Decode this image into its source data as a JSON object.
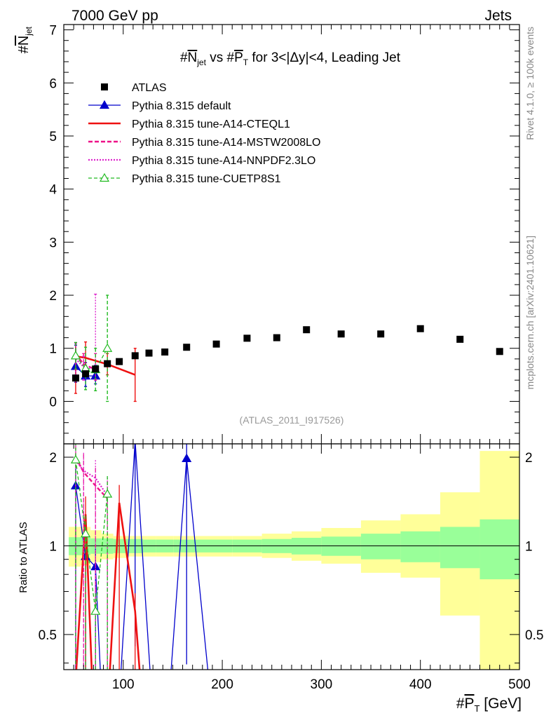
{
  "header": {
    "left": "7000 GeV pp",
    "right": "Jets"
  },
  "side_labels": {
    "rivet": "Rivet 4.1.0, ≥ 100k events",
    "mcplots": "mcplots.cern.ch [arXiv:2401.10621]"
  },
  "chart_data": {
    "type": "scatter",
    "title": {
      "pre": "#",
      "sym": "N",
      "sub": "jet",
      "mid": " vs #",
      "sym2": "P",
      "sub2": "T",
      "post": " for 3<|Δy|<4, Leading Jet"
    },
    "ylabel": {
      "pre": "#",
      "sym": "N",
      "sub": "jet"
    },
    "xlabel": {
      "pre": "#",
      "sym": "P",
      "sub": "T",
      "post": " [GeV]"
    },
    "ratio_ylabel": "Ratio to ATLAS",
    "watermark": "(ATLAS_2011_I917526)",
    "xlim": [
      40,
      500
    ],
    "ylim": [
      -0.8,
      7.1
    ],
    "ratio_ylim": [
      0.38,
      2.22
    ],
    "xticks": [
      "100",
      "200",
      "300",
      "400",
      "500"
    ],
    "xtick_values": [
      100,
      200,
      300,
      400,
      500
    ],
    "yticks": [
      "0",
      "1",
      "2",
      "3",
      "4",
      "5",
      "6",
      "7"
    ],
    "ytick_values": [
      0,
      1,
      2,
      3,
      4,
      5,
      6,
      7
    ],
    "ratio_yticks": [
      "0.5",
      "1",
      "2"
    ],
    "ratio_ytick_values": [
      0.5,
      1,
      2
    ],
    "legend": [
      "ATLAS",
      "Pythia 8.315 default",
      "Pythia 8.315 tune-A14-CTEQL1",
      "Pythia 8.315 tune-A14-MSTW2008LO",
      "Pythia 8.315 tune-A14-NNPDF2.3LO",
      "Pythia 8.315 tune-CUETP8S1"
    ],
    "series_colors": [
      "#000000",
      "#0000cc",
      "#ee1111",
      "#ee1188",
      "#dd22cc",
      "#22bb22"
    ],
    "band_colors": {
      "inner": "#99ff99",
      "outer": "#ffff99"
    },
    "data": {
      "x": [
        52,
        62,
        72,
        84,
        96,
        112,
        126,
        142,
        164,
        194,
        225,
        255,
        285,
        320,
        360,
        400,
        440,
        480
      ],
      "y": [
        0.44,
        0.52,
        0.61,
        0.71,
        0.75,
        0.86,
        0.91,
        0.93,
        1.02,
        1.08,
        1.19,
        1.2,
        1.35,
        1.27,
        1.27,
        1.37,
        1.17,
        0.94
      ],
      "band_edges": [
        45,
        57,
        67,
        78,
        90,
        103,
        120,
        133,
        151,
        178,
        210,
        240,
        270,
        300,
        340,
        380,
        420,
        460,
        500
      ],
      "inner_half": [
        0.07,
        0.07,
        0.06,
        0.06,
        0.055,
        0.055,
        0.05,
        0.05,
        0.05,
        0.05,
        0.05,
        0.055,
        0.065,
        0.075,
        0.1,
        0.12,
        0.16,
        0.23
      ],
      "outer_lo": [
        0.15,
        0.14,
        0.12,
        0.1,
        0.09,
        0.08,
        0.08,
        0.08,
        0.08,
        0.08,
        0.08,
        0.09,
        0.11,
        0.13,
        0.19,
        0.22,
        0.42,
        0.68
      ],
      "outer_hi": [
        0.16,
        0.16,
        0.13,
        0.1,
        0.08,
        0.08,
        0.08,
        0.08,
        0.08,
        0.08,
        0.08,
        0.1,
        0.12,
        0.15,
        0.22,
        0.28,
        0.52,
        1.1
      ]
    },
    "mc": {
      "default": {
        "x": [
          52,
          62,
          72
        ],
        "y": [
          0.66,
          0.48,
          0.48
        ],
        "err": [
          [
            0.3,
            0.4
          ],
          [
            0.2,
            0.25
          ],
          [
            0.15,
            0.2
          ]
        ],
        "ratio_x": [
          52,
          62,
          72,
          79,
          95,
          112,
          130,
          145,
          164,
          190
        ],
        "ratio_y": [
          1.6,
          0.92,
          0.85,
          0.2,
          0.2,
          2.28,
          0.2,
          0.2,
          1.98,
          0.2
        ]
      },
      "cteql1": {
        "x": [
          52,
          62,
          84,
          112
        ],
        "y": [
          0.85,
          0.82,
          0.7,
          0.5
        ],
        "err": [
          [
            0.7,
            0.25
          ],
          [
            0.3,
            0.3
          ],
          [
            0.2,
            0.2
          ],
          [
            0.5,
            0.5
          ]
        ],
        "ratio_x": [
          52,
          62,
          70,
          84,
          96,
          112,
          120
        ],
        "ratio_y": [
          0.35,
          1.28,
          0.2,
          0.2,
          1.4,
          0.6,
          0.2
        ]
      },
      "mstw": {
        "x": [
          52,
          60,
          72
        ],
        "y": [
          0.9,
          0.7,
          0.6
        ],
        "err": [
          [
            0.3,
            0.2
          ],
          [
            0.2,
            0.2
          ],
          [
            0.2,
            0.3
          ]
        ],
        "ratio_x": [
          52,
          60,
          72,
          84
        ],
        "ratio_y": [
          2.0,
          1.78,
          1.6,
          1.45
        ]
      },
      "nnpdf": {
        "x": [
          52,
          60,
          72
        ],
        "y": [
          0.8,
          0.65,
          0.62
        ],
        "err": [
          [
            0.3,
            0.3
          ],
          [
            0.25,
            0.2
          ],
          [
            0.2,
            1.4
          ]
        ],
        "ratio_x": [
          52,
          60,
          72,
          84
        ],
        "ratio_y": [
          1.95,
          1.8,
          1.7,
          1.48
        ]
      },
      "cuetp8s1": {
        "x": [
          52,
          62,
          72,
          84
        ],
        "y": [
          0.86,
          0.62,
          0.6,
          1.0
        ],
        "err": [
          [
            0.25,
            0.25
          ],
          [
            0.4,
            0.4
          ],
          [
            0.4,
            0.4
          ],
          [
            1.0,
            1.0
          ]
        ],
        "ratio_x": [
          52,
          62,
          72,
          84
        ],
        "ratio_y": [
          1.96,
          1.1,
          0.6,
          1.5
        ]
      }
    }
  }
}
